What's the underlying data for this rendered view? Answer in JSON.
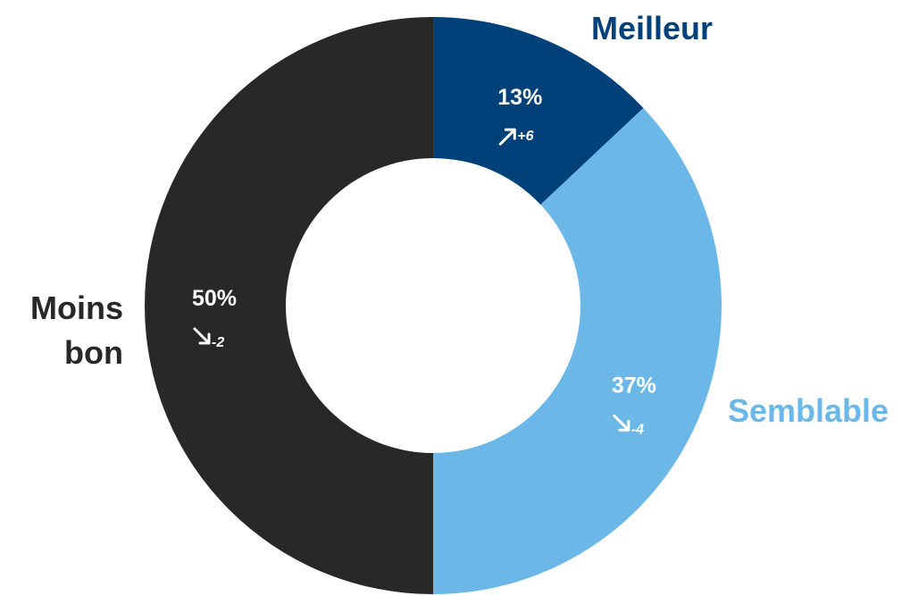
{
  "chart_data": {
    "type": "donut",
    "categories": [
      "Meilleur",
      "Semblable",
      "Moins bon"
    ],
    "values": [
      13,
      37,
      50
    ],
    "value_labels": [
      "13%",
      "37%",
      "50%"
    ],
    "changes": [
      "+6",
      "-4",
      "-2"
    ],
    "colors": [
      "#00417a",
      "#6bb8e8",
      "#282828"
    ]
  }
}
